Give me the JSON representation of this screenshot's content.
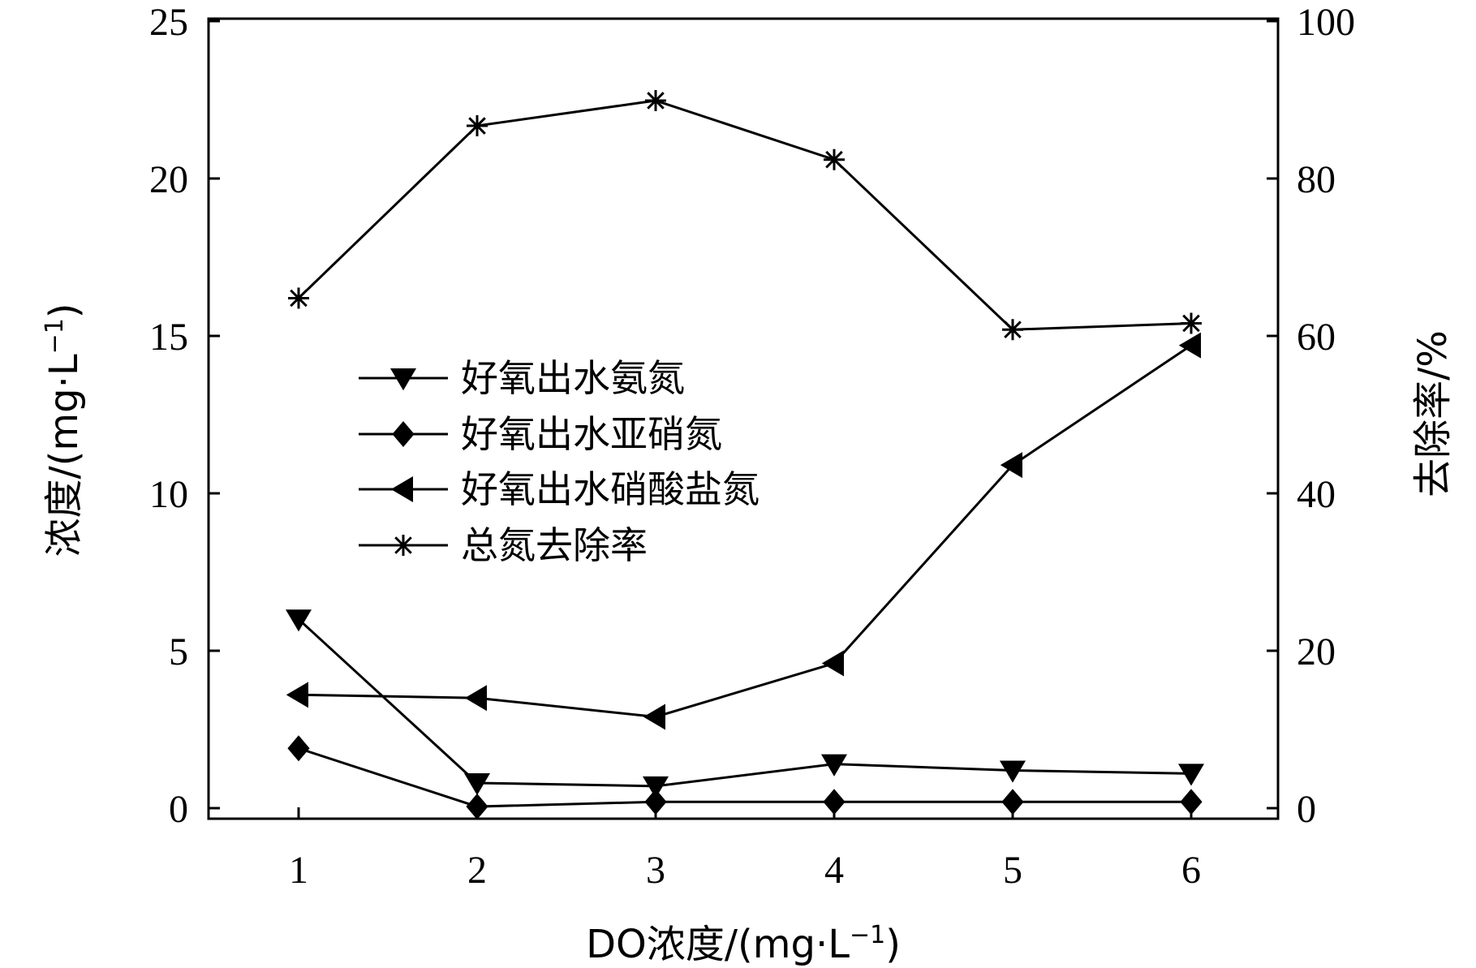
{
  "chart_data": {
    "type": "line",
    "x": [
      1,
      2,
      3,
      4,
      5,
      6
    ],
    "xlabel_prefix": "DO浓度/(mg·L",
    "xlabel_sup": "−1",
    "xlabel_suffix": ")",
    "ylabel_left_prefix": "浓度/(mg·L",
    "ylabel_left_sup": "−1",
    "ylabel_left_suffix": ")",
    "ylabel_right": "去除率/%",
    "xlim": [
      0.5,
      6.5
    ],
    "ylim_left": [
      0,
      25
    ],
    "ylim_right": [
      0,
      100
    ],
    "x_ticks": [
      "1",
      "2",
      "3",
      "4",
      "5",
      "6"
    ],
    "y_left_ticks": [
      "0",
      "5",
      "10",
      "15",
      "20",
      "25"
    ],
    "y_right_ticks": [
      "0",
      "20",
      "40",
      "60",
      "80",
      "100"
    ],
    "legend_position": "center-left",
    "series": [
      {
        "name": "好氧出水氨氮",
        "axis": "left",
        "marker": "triangle-down",
        "values": [
          6.0,
          0.8,
          0.7,
          1.4,
          1.2,
          1.1
        ]
      },
      {
        "name": "好氧出水亚硝氮",
        "axis": "left",
        "marker": "diamond",
        "values": [
          1.9,
          0.05,
          0.2,
          0.2,
          0.2,
          0.2
        ]
      },
      {
        "name": "好氧出水硝酸盐氮",
        "axis": "left",
        "marker": "triangle-left",
        "values": [
          3.6,
          3.5,
          2.9,
          4.6,
          10.9,
          14.7
        ]
      },
      {
        "name": "总氮去除率",
        "axis": "right",
        "marker": "asterisk",
        "values": [
          64.8,
          86.7,
          89.9,
          82.4,
          60.8,
          61.6
        ]
      }
    ]
  }
}
